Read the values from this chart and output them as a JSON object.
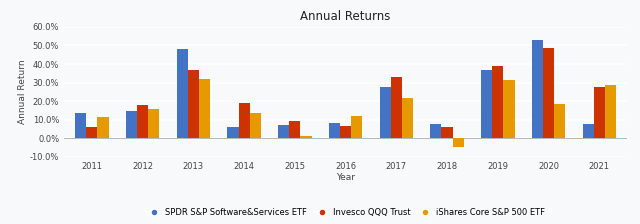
{
  "title": "Annual Returns",
  "xlabel": "Year",
  "ylabel": "Annual Return",
  "years": [
    2011,
    2012,
    2013,
    2014,
    2015,
    2016,
    2017,
    2018,
    2019,
    2020,
    2021
  ],
  "XSW": [
    0.135,
    0.148,
    0.481,
    0.058,
    0.07,
    0.082,
    0.278,
    0.075,
    0.365,
    0.528,
    0.075
  ],
  "QQQ": [
    0.063,
    0.178,
    0.365,
    0.19,
    0.093,
    0.068,
    0.328,
    0.063,
    0.39,
    0.485,
    0.275
  ],
  "IVV": [
    0.112,
    0.16,
    0.32,
    0.135,
    0.013,
    0.12,
    0.218,
    -0.045,
    0.313,
    0.183,
    0.287
  ],
  "colors": {
    "XSW": "#4472C4",
    "QQQ": "#CC3300",
    "IVV": "#E69900"
  },
  "ylim": [
    -0.1,
    0.6
  ],
  "ytick_step": 0.1,
  "legend_labels": {
    "XSW": "SPDR S&P Software&Services ETF",
    "QQQ": "Invesco QQQ Trust",
    "IVV": "iShares Core S&P 500 ETF"
  },
  "background_color": "#f8f9fa",
  "plot_background": "#f8f9fa",
  "grid_color": "#ffffff",
  "title_fontsize": 8.5,
  "axis_label_fontsize": 6.5,
  "tick_fontsize": 6,
  "legend_fontsize": 6,
  "bar_width": 0.22
}
